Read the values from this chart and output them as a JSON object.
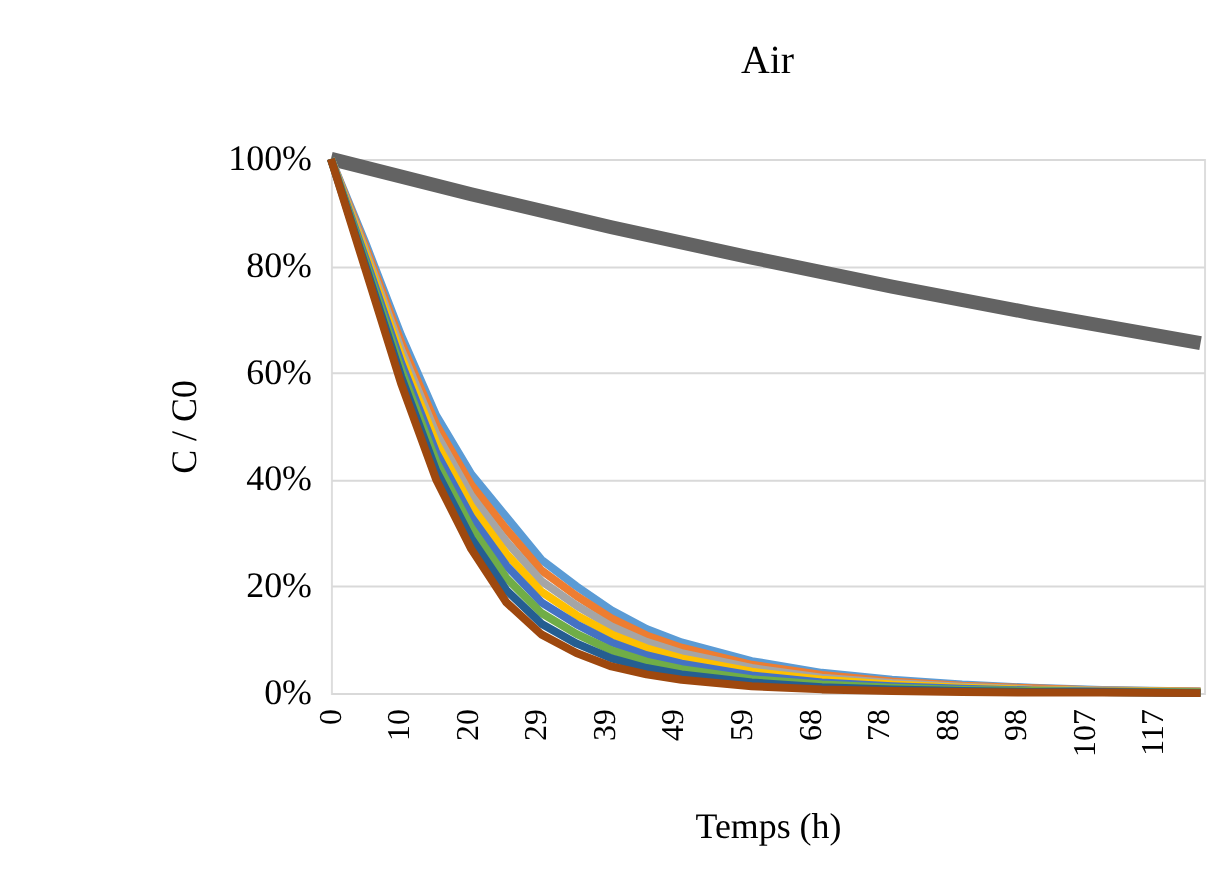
{
  "chart_data": {
    "type": "line",
    "title": "Air",
    "xlabel": "Temps (h)",
    "ylabel": "C / C0",
    "x": [
      0,
      5,
      10,
      15,
      20,
      25,
      30,
      35,
      40,
      45,
      50,
      60,
      70,
      80,
      90,
      100,
      110,
      124
    ],
    "xlim": [
      0,
      124.5
    ],
    "xticks": [
      0,
      {
        "value": 9.77,
        "label": "10"
      },
      {
        "value": 19.54,
        "label": "20"
      },
      {
        "value": 29.31,
        "label": "29"
      },
      {
        "value": 39.08,
        "label": "39"
      },
      {
        "value": 48.85,
        "label": "49"
      },
      {
        "value": 58.62,
        "label": "59"
      },
      {
        "value": 68.39,
        "label": "68"
      },
      {
        "value": 78.16,
        "label": "78"
      },
      {
        "value": 87.93,
        "label": "88"
      },
      {
        "value": 97.7,
        "label": "98"
      },
      {
        "value": 107.47,
        "label": "107"
      },
      {
        "value": 117.24,
        "label": "117"
      }
    ],
    "ylim": [
      0,
      100
    ],
    "yticks": [
      {
        "value": 0,
        "label": "0%"
      },
      {
        "value": 20,
        "label": "20%"
      },
      {
        "value": 40,
        "label": "40%"
      },
      {
        "value": 60,
        "label": "60%"
      },
      {
        "value": 80,
        "label": "80%"
      },
      {
        "value": 100,
        "label": "100%"
      }
    ],
    "grid": "y",
    "marker": "none",
    "line_style": "solid",
    "series": [
      {
        "color": "#636363",
        "x": [
          0,
          20,
          40,
          60,
          80,
          100,
          124
        ],
        "values": [
          100,
          93.4,
          87.2,
          81.5,
          76.1,
          71.1,
          65.5
        ]
      },
      {
        "color": "#5b9bd5",
        "values": [
          100,
          84,
          67,
          52,
          41,
          33,
          25,
          20,
          15.5,
          12,
          9.5,
          6,
          3.8,
          2.5,
          1.6,
          1,
          0.6,
          0.3
        ]
      },
      {
        "color": "#ed7d31",
        "values": [
          100,
          83.3,
          65.7,
          50.3,
          39,
          30.7,
          23,
          18.2,
          14,
          10.8,
          8.5,
          5.3,
          3.4,
          2.2,
          1.4,
          0.9,
          0.5,
          0.3
        ]
      },
      {
        "color": "#a5a5a5",
        "values": [
          100,
          82.6,
          64.4,
          48.6,
          37,
          28.4,
          21,
          16.4,
          12.5,
          9.6,
          7.5,
          4.7,
          2.9,
          1.9,
          1.2,
          0.7,
          0.5,
          0.2
        ]
      },
      {
        "color": "#ffc000",
        "values": [
          100,
          81.9,
          63.1,
          46.9,
          35,
          26.1,
          19,
          14.6,
          11,
          8.4,
          6.5,
          4,
          2.5,
          1.6,
          1,
          0.6,
          0.4,
          0.2
        ]
      },
      {
        "color": "#4472c4",
        "values": [
          100,
          81.1,
          61.9,
          45.1,
          33,
          23.9,
          17,
          12.9,
          9.5,
          7.1,
          5.5,
          3.3,
          2,
          1.3,
          0.8,
          0.5,
          0.3,
          0.1
        ]
      },
      {
        "color": "#70ad47",
        "values": [
          100,
          80.4,
          60.6,
          43.4,
          31,
          21.6,
          15,
          11.1,
          8,
          5.9,
          4.5,
          2.6,
          1.6,
          1,
          0.6,
          0.4,
          0.2,
          0.1
        ]
      },
      {
        "color": "#255e91",
        "values": [
          100,
          79.7,
          59.3,
          41.7,
          29,
          19.3,
          13,
          9.3,
          6.5,
          4.7,
          3.5,
          2,
          1.1,
          0.7,
          0.4,
          0.2,
          0.2,
          0
        ]
      },
      {
        "color": "#9e480e",
        "values": [
          100,
          79,
          58,
          40,
          27,
          17,
          11,
          7.5,
          5,
          3.5,
          2.5,
          1.3,
          0.7,
          0.4,
          0.2,
          0.1,
          0.1,
          0
        ]
      }
    ]
  }
}
